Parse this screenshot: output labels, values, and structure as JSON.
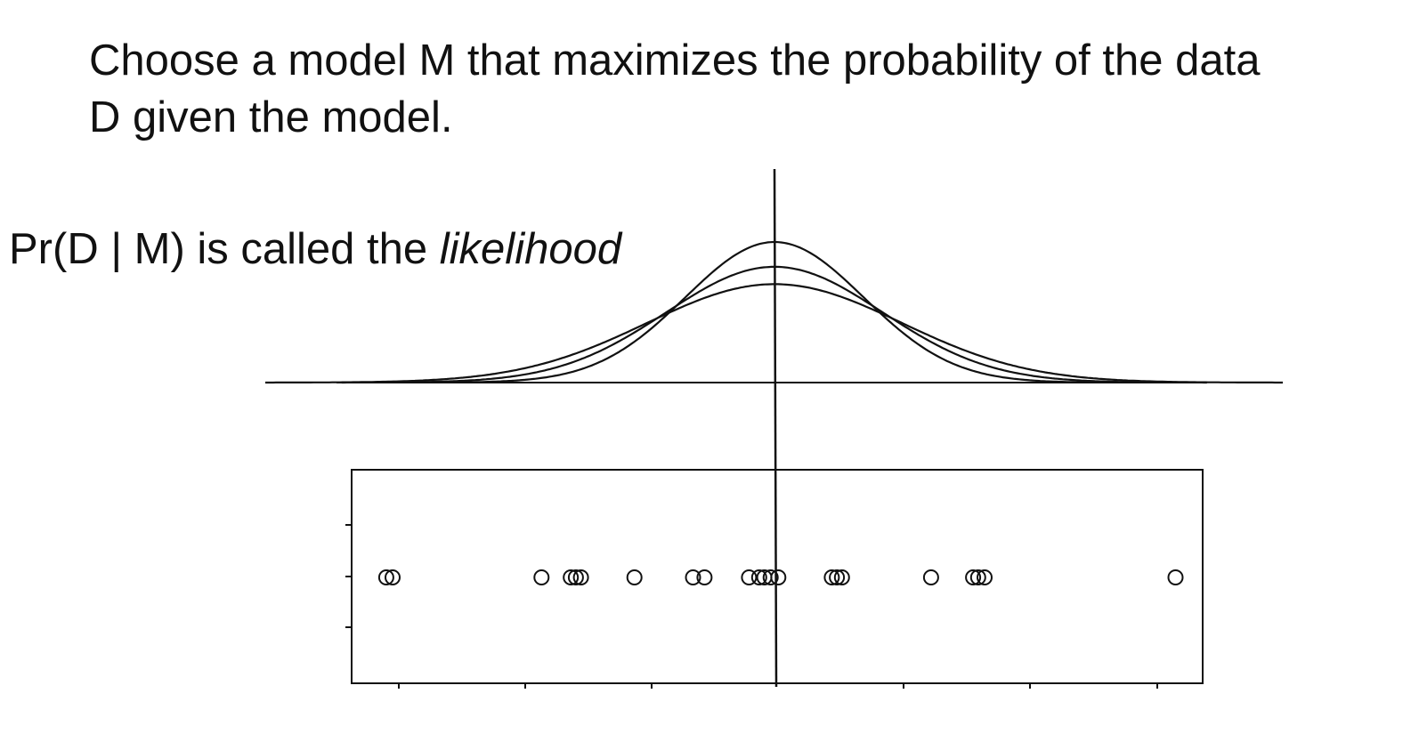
{
  "heading": {
    "line1": "Choose a model M that maximizes the probability of the data",
    "line2": "D given the model."
  },
  "likelihood_label": {
    "prefix": "Pr(D | M) is called the ",
    "emphasis": "likelihood"
  },
  "colors": {
    "ink": "#111111",
    "background": "#ffffff"
  },
  "chart_data": {
    "type": "scatter",
    "description_free": true,
    "curves": [
      {
        "kind": "normal",
        "mean": 0,
        "sd": 0.7
      },
      {
        "kind": "normal",
        "mean": 0,
        "sd": 0.85
      },
      {
        "kind": "normal",
        "mean": 0,
        "sd": 1.0
      }
    ],
    "mean_line": 0,
    "x": [
      -3.05,
      -3.0,
      -1.83,
      -1.6,
      -1.56,
      -1.52,
      -1.1,
      -0.64,
      -0.55,
      -0.2,
      -0.12,
      -0.08,
      -0.03,
      0.03,
      0.45,
      0.49,
      0.53,
      1.23,
      1.56,
      1.6,
      1.65,
      3.15
    ]
  }
}
